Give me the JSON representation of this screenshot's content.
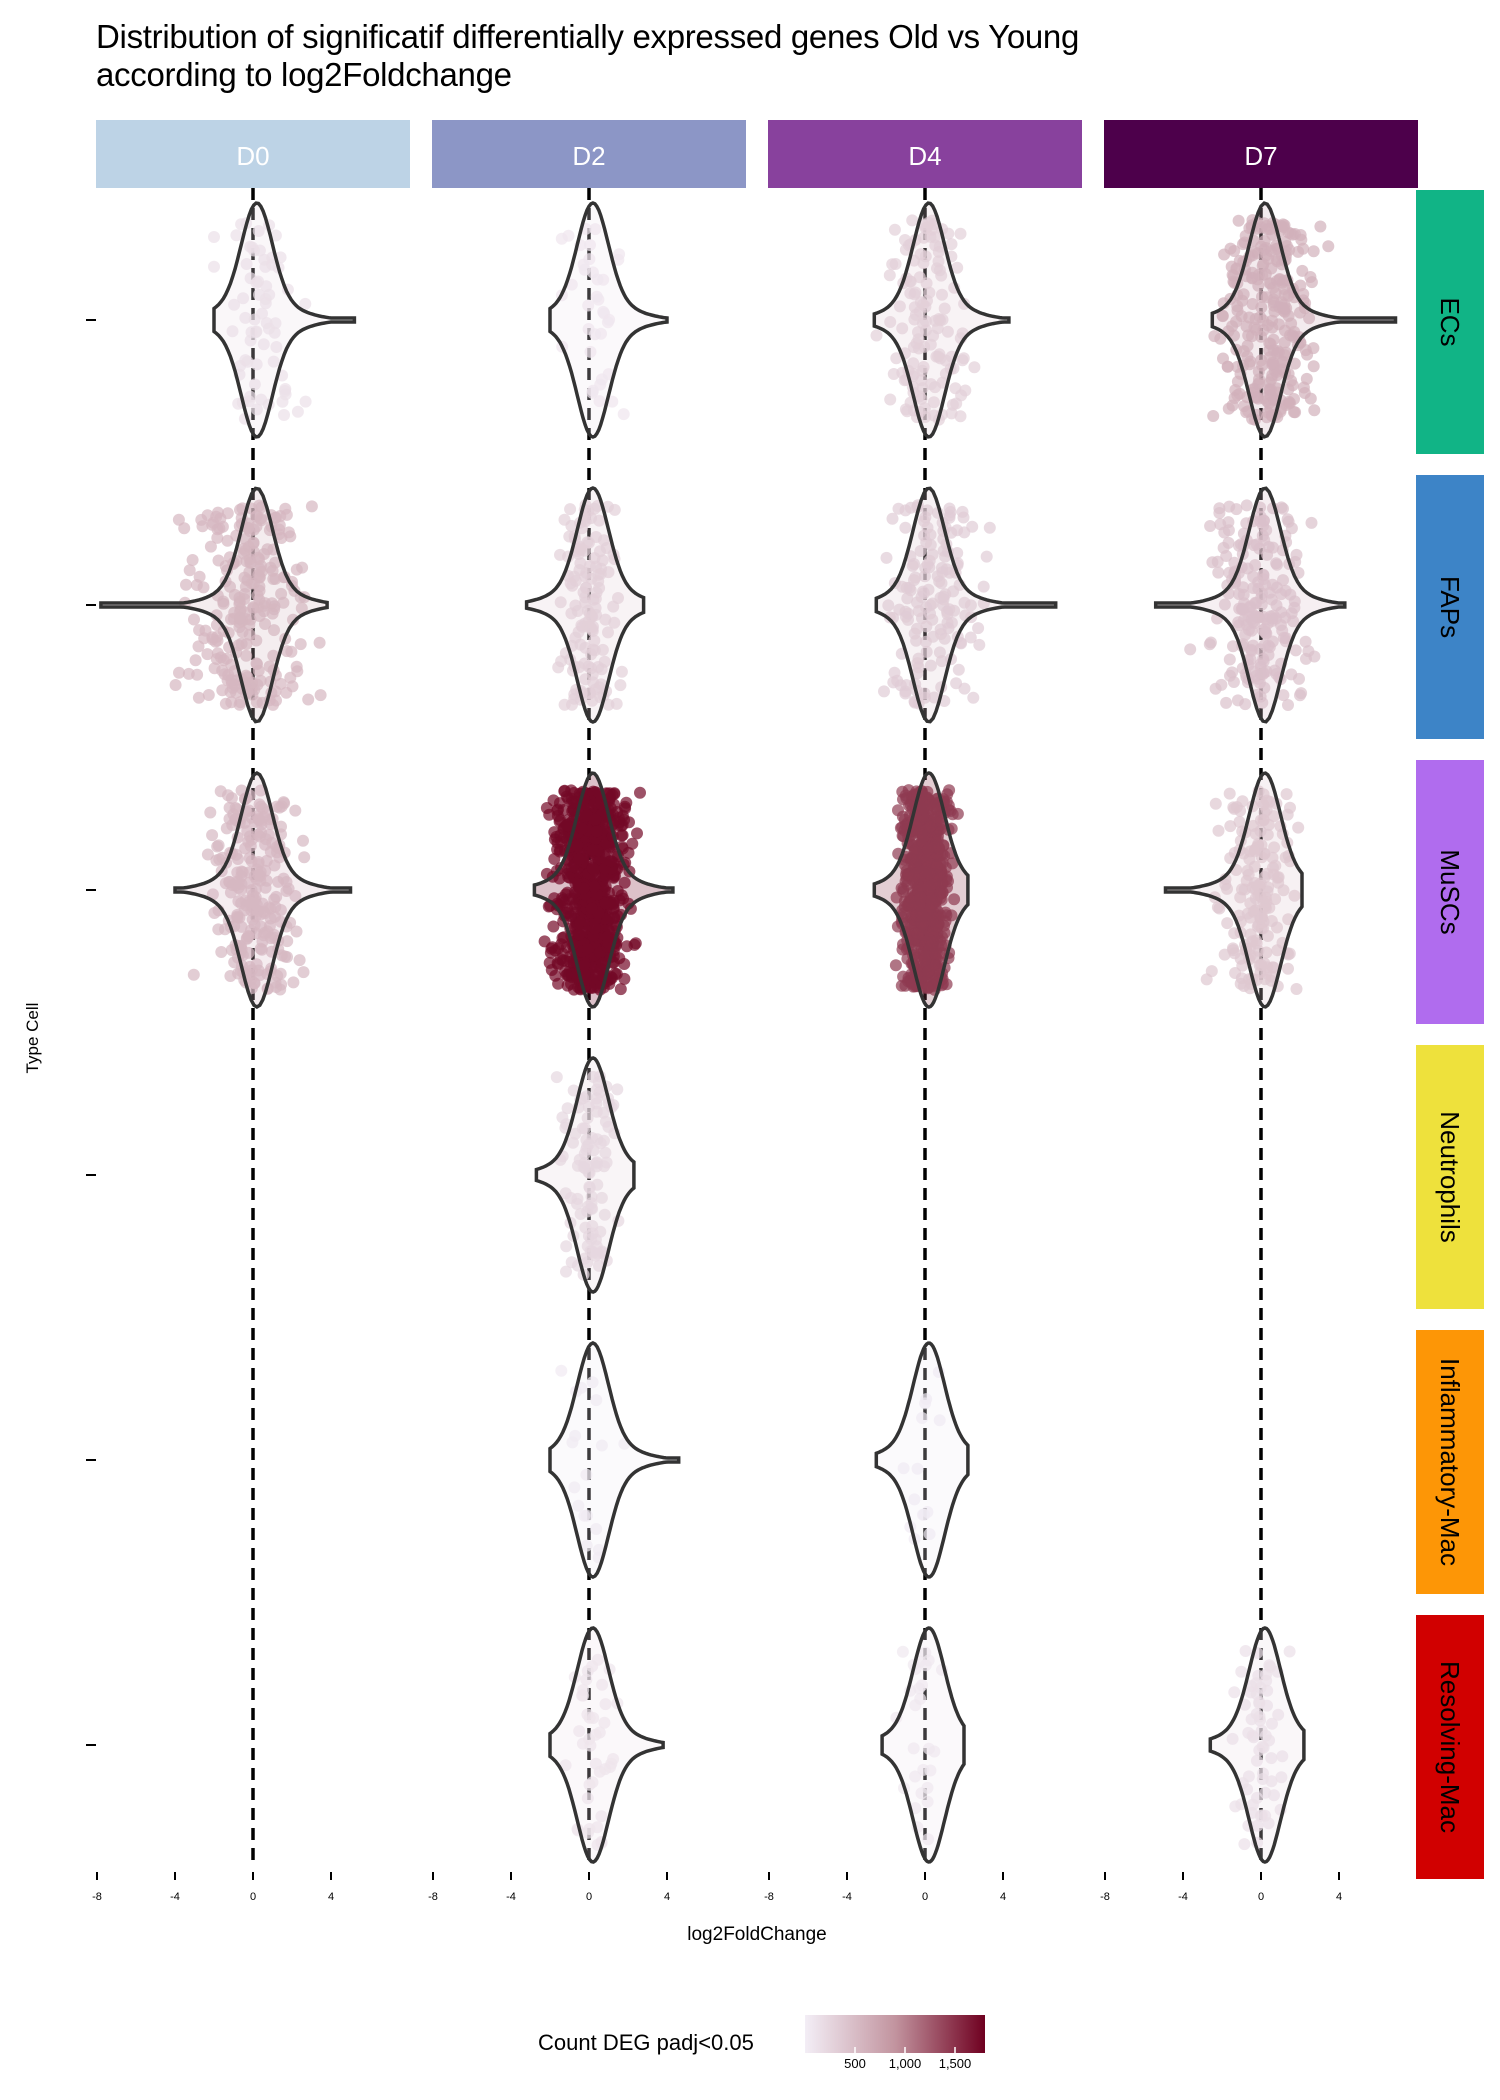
{
  "chart_data": {
    "type": "violin",
    "title": "Distribution of significatif differentially expressed genes Old vs Young\n according to log2Foldchange",
    "xlabel": "log2FoldChange",
    "ylabel": "Type Cell",
    "xlim": [
      -9,
      9
    ],
    "xticks": [
      -8,
      -4,
      0,
      4
    ],
    "vline_x": 0,
    "columns": [
      "D0",
      "D2",
      "D4",
      "D7"
    ],
    "rows": [
      "ECs",
      "FAPs",
      "MuSCs",
      "Neutrophils",
      "Inflammatory-Mac",
      "Resolving-Mac"
    ],
    "column_colors": {
      "D0": "#bdd3e6",
      "D2": "#8c96c6",
      "D4": "#88419d",
      "D7": "#4d004b"
    },
    "row_colors": {
      "ECs": "#11b486",
      "FAPs": "#3d84c7",
      "MuSCs": "#b06cee",
      "Neutrophils": "#eee13c",
      "Inflammatory-Mac": "#fd9606",
      "Resolving-Mac": "#d10000"
    },
    "legend": {
      "title": "Count DEG padj<0.05",
      "ticks": [
        500,
        1000,
        1500
      ],
      "tick_labels": [
        "500",
        "1,000",
        "1,500"
      ],
      "range": [
        0,
        1800
      ],
      "colors": [
        "#f3eef6",
        "#c2949f",
        "#6f0020"
      ]
    },
    "panels": [
      {
        "row": "ECs",
        "col": "D0",
        "count": 150,
        "min": -2,
        "max": 5.2
      },
      {
        "row": "ECs",
        "col": "D2",
        "count": 80,
        "min": -2,
        "max": 4
      },
      {
        "row": "ECs",
        "col": "D4",
        "count": 300,
        "min": -2.6,
        "max": 4.3
      },
      {
        "row": "ECs",
        "col": "D7",
        "count": 620,
        "min": -2.5,
        "max": 6.9
      },
      {
        "row": "FAPs",
        "col": "D0",
        "count": 560,
        "min": -7.8,
        "max": 3.8
      },
      {
        "row": "FAPs",
        "col": "D2",
        "count": 300,
        "min": -3.2,
        "max": 2.8
      },
      {
        "row": "FAPs",
        "col": "D4",
        "count": 340,
        "min": -2.5,
        "max": 6.7
      },
      {
        "row": "FAPs",
        "col": "D7",
        "count": 460,
        "min": -5.4,
        "max": 4.3
      },
      {
        "row": "MuSCs",
        "col": "D0",
        "count": 540,
        "min": -4,
        "max": 5
      },
      {
        "row": "MuSCs",
        "col": "D2",
        "count": 1750,
        "min": -2.8,
        "max": 4.3
      },
      {
        "row": "MuSCs",
        "col": "D4",
        "count": 1450,
        "min": -2.6,
        "max": 2.2
      },
      {
        "row": "MuSCs",
        "col": "D7",
        "count": 390,
        "min": -4.9,
        "max": 2.1
      },
      {
        "row": "Neutrophils",
        "col": "D2",
        "count": 230,
        "min": -2.7,
        "max": 2.3
      },
      {
        "row": "Inflammatory-Mac",
        "col": "D2",
        "count": 40,
        "min": -2,
        "max": 4.6
      },
      {
        "row": "Inflammatory-Mac",
        "col": "D4",
        "count": 30,
        "min": -2.5,
        "max": 2.2
      },
      {
        "row": "Resolving-Mac",
        "col": "D2",
        "count": 90,
        "min": -2,
        "max": 3.8
      },
      {
        "row": "Resolving-Mac",
        "col": "D4",
        "count": 60,
        "min": -2.2,
        "max": 2
      },
      {
        "row": "Resolving-Mac",
        "col": "D7",
        "count": 140,
        "min": -2.6,
        "max": 2.2
      }
    ]
  }
}
